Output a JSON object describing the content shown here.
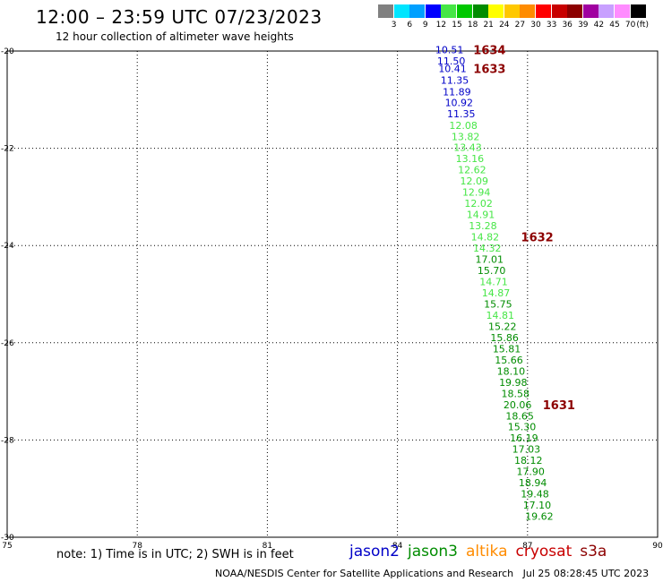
{
  "title": "12:00 – 23:59 UTC 07/23/2023",
  "subtitle": "12 hour collection of altimeter wave heights",
  "color_scale": {
    "unit_label": "(ft)",
    "ticks": [
      "3",
      "6",
      "9",
      "12",
      "15",
      "18",
      "21",
      "24",
      "27",
      "30",
      "33",
      "36",
      "39",
      "42",
      "45",
      "70"
    ],
    "colors": [
      "#808080",
      "#00e5ff",
      "#00a0ff",
      "#0000ff",
      "#46e646",
      "#00c800",
      "#008c00",
      "#ffff00",
      "#ffc800",
      "#ff8c00",
      "#ff0000",
      "#c80000",
      "#8c0000",
      "#a000a0",
      "#c8a0ff",
      "#ff8cff",
      "#000000"
    ]
  },
  "note": "note: 1) Time is in UTC; 2) SWH is in feet",
  "credit": "NOAA/NESDIS Center for Satellite Applications and Research",
  "timestamp": "Jul 25 08:28:45 UTC 2023",
  "satellites": [
    {
      "name": "jason2",
      "color": "#0000c8"
    },
    {
      "name": "jason3",
      "color": "#008c00"
    },
    {
      "name": "altika",
      "color": "#ff8c00"
    },
    {
      "name": "cryosat",
      "color": "#c80000"
    },
    {
      "name": "s3a",
      "color": "#8c0000"
    }
  ],
  "chart_data": {
    "type": "scatter",
    "xlim": [
      75,
      90
    ],
    "ylim": [
      -30,
      -20
    ],
    "x_ticks": [
      "75",
      "78",
      "81",
      "84",
      "87",
      "90"
    ],
    "y_ticks": [
      "-20",
      "-22",
      "-24",
      "-26",
      "-28",
      "-30"
    ],
    "grid": true,
    "points": [
      {
        "x": 85.2,
        "y": -19.97,
        "label": "10.51",
        "color": "#0000c8"
      },
      {
        "x": 85.24,
        "y": -20.2,
        "label": "11.50",
        "color": "#0000c8"
      },
      {
        "x": 85.27,
        "y": -20.36,
        "label": "10.41",
        "color": "#0000c8"
      },
      {
        "x": 85.32,
        "y": -20.6,
        "label": "11.35",
        "color": "#0000c8"
      },
      {
        "x": 85.37,
        "y": -20.84,
        "label": "11.89",
        "color": "#0000c8"
      },
      {
        "x": 85.42,
        "y": -21.06,
        "label": "10.92",
        "color": "#0000c8"
      },
      {
        "x": 85.47,
        "y": -21.29,
        "label": "11.35",
        "color": "#0000c8"
      },
      {
        "x": 85.52,
        "y": -21.53,
        "label": "12.08",
        "color": "#46e646"
      },
      {
        "x": 85.57,
        "y": -21.76,
        "label": "13.82",
        "color": "#46e646"
      },
      {
        "x": 85.62,
        "y": -21.98,
        "label": "13.43",
        "color": "#46e646"
      },
      {
        "x": 85.67,
        "y": -22.21,
        "label": "13.16",
        "color": "#46e646"
      },
      {
        "x": 85.72,
        "y": -22.44,
        "label": "12.62",
        "color": "#46e646"
      },
      {
        "x": 85.77,
        "y": -22.67,
        "label": "12.09",
        "color": "#46e646"
      },
      {
        "x": 85.82,
        "y": -22.9,
        "label": "12.94",
        "color": "#46e646"
      },
      {
        "x": 85.87,
        "y": -23.13,
        "label": "12.02",
        "color": "#46e646"
      },
      {
        "x": 85.92,
        "y": -23.36,
        "label": "14.91",
        "color": "#46e646"
      },
      {
        "x": 85.97,
        "y": -23.59,
        "label": "13.28",
        "color": "#46e646"
      },
      {
        "x": 86.02,
        "y": -23.82,
        "label": "14.82",
        "color": "#46e646"
      },
      {
        "x": 86.07,
        "y": -24.05,
        "label": "14.32",
        "color": "#46e646"
      },
      {
        "x": 86.12,
        "y": -24.28,
        "label": "17.01",
        "color": "#008c00"
      },
      {
        "x": 86.17,
        "y": -24.51,
        "label": "15.70",
        "color": "#008c00"
      },
      {
        "x": 86.22,
        "y": -24.74,
        "label": "14.71",
        "color": "#46e646"
      },
      {
        "x": 86.27,
        "y": -24.97,
        "label": "14.87",
        "color": "#46e646"
      },
      {
        "x": 86.32,
        "y": -25.2,
        "label": "15.75",
        "color": "#008c00"
      },
      {
        "x": 86.37,
        "y": -25.43,
        "label": "14.81",
        "color": "#46e646"
      },
      {
        "x": 86.42,
        "y": -25.66,
        "label": "15.22",
        "color": "#008c00"
      },
      {
        "x": 86.47,
        "y": -25.89,
        "label": "15.86",
        "color": "#008c00"
      },
      {
        "x": 86.52,
        "y": -26.12,
        "label": "15.81",
        "color": "#008c00"
      },
      {
        "x": 86.57,
        "y": -26.35,
        "label": "15.66",
        "color": "#008c00"
      },
      {
        "x": 86.62,
        "y": -26.58,
        "label": "18.10",
        "color": "#008c00"
      },
      {
        "x": 86.67,
        "y": -26.81,
        "label": "19.98",
        "color": "#008c00"
      },
      {
        "x": 86.72,
        "y": -27.04,
        "label": "18.58",
        "color": "#008c00"
      },
      {
        "x": 86.77,
        "y": -27.27,
        "label": "20.06",
        "color": "#008c00"
      },
      {
        "x": 86.82,
        "y": -27.5,
        "label": "18.65",
        "color": "#008c00"
      },
      {
        "x": 86.87,
        "y": -27.73,
        "label": "15.30",
        "color": "#008c00"
      },
      {
        "x": 86.92,
        "y": -27.96,
        "label": "16.19",
        "color": "#008c00"
      },
      {
        "x": 86.97,
        "y": -28.19,
        "label": "17.03",
        "color": "#008c00"
      },
      {
        "x": 87.02,
        "y": -28.42,
        "label": "18.12",
        "color": "#008c00"
      },
      {
        "x": 87.07,
        "y": -28.65,
        "label": "17.90",
        "color": "#008c00"
      },
      {
        "x": 87.12,
        "y": -28.88,
        "label": "18.94",
        "color": "#008c00"
      },
      {
        "x": 87.17,
        "y": -29.11,
        "label": "19.48",
        "color": "#008c00"
      },
      {
        "x": 87.22,
        "y": -29.34,
        "label": "17.10",
        "color": "#008c00"
      },
      {
        "x": 87.27,
        "y": -29.57,
        "label": "19.62",
        "color": "#008c00"
      }
    ],
    "orbit_labels": [
      {
        "x": 85.75,
        "y": -19.97,
        "label": "1634",
        "color": "#8c0000"
      },
      {
        "x": 85.75,
        "y": -20.36,
        "label": "1633",
        "color": "#8c0000"
      },
      {
        "x": 86.85,
        "y": -23.82,
        "label": "1632",
        "color": "#8c0000"
      },
      {
        "x": 87.35,
        "y": -27.27,
        "label": "1631",
        "color": "#8c0000"
      }
    ]
  }
}
